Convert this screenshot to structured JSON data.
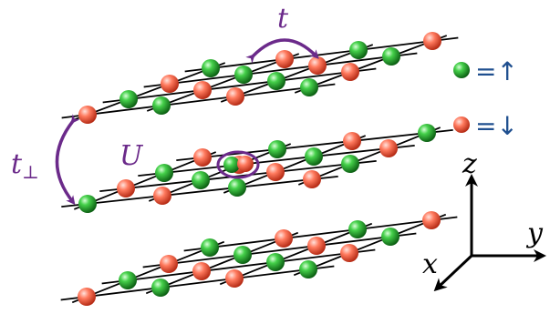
{
  "labels": {
    "hopping": "t",
    "interlayer_hopping": "t",
    "interlayer_sub": "⊥",
    "interaction": "U"
  },
  "legend": [
    {
      "kind": "up",
      "text": "=↑",
      "color": "#2f8f3a"
    },
    {
      "kind": "down",
      "text": "=↓",
      "color": "#e04a30"
    }
  ],
  "axes": {
    "x": "x",
    "y": "y",
    "z": "z"
  },
  "colors": {
    "annotation": "#6b2a8a",
    "legend_text": "#1f4f8f",
    "lattice_line": "#000000",
    "spin_up": "#2f8f3a",
    "spin_down": "#e04a30"
  }
}
